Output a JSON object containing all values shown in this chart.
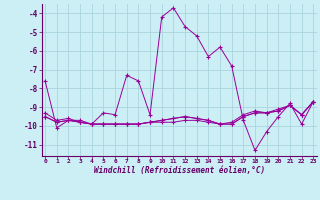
{
  "xlabel": "Windchill (Refroidissement éolien,°C)",
  "background_color": "#cceef5",
  "grid_color": "#aad4dc",
  "line_color": "#990099",
  "axis_color": "#660066",
  "x_ticks": [
    0,
    1,
    2,
    3,
    4,
    5,
    6,
    7,
    8,
    9,
    10,
    11,
    12,
    13,
    14,
    15,
    16,
    17,
    18,
    19,
    20,
    21,
    22,
    23
  ],
  "y_ticks": [
    -4,
    -5,
    -6,
    -7,
    -8,
    -9,
    -10,
    -11
  ],
  "ylim": [
    -11.6,
    -3.5
  ],
  "xlim": [
    -0.3,
    23.3
  ],
  "series": [
    {
      "x": [
        0,
        1,
        2,
        3,
        4,
        5,
        6,
        7,
        8,
        9,
        10,
        11,
        12,
        13,
        14,
        15,
        16,
        17,
        18,
        19,
        20,
        21,
        22,
        23
      ],
      "y": [
        -7.6,
        -10.1,
        -9.7,
        -9.7,
        -9.9,
        -9.3,
        -9.4,
        -7.3,
        -7.6,
        -9.4,
        -4.2,
        -3.7,
        -4.7,
        -5.2,
        -6.3,
        -5.8,
        -6.8,
        -9.7,
        -11.3,
        -10.3,
        -9.5,
        -8.8,
        -9.9,
        -8.7
      ]
    },
    {
      "x": [
        0,
        1,
        2,
        3,
        4,
        5,
        6,
        7,
        8,
        9,
        10,
        11,
        12,
        13,
        14,
        15,
        16,
        17,
        18,
        19,
        20,
        21,
        22,
        23
      ],
      "y": [
        -9.5,
        -9.8,
        -9.7,
        -9.8,
        -9.9,
        -9.9,
        -9.9,
        -9.9,
        -9.9,
        -9.8,
        -9.8,
        -9.8,
        -9.7,
        -9.7,
        -9.8,
        -9.9,
        -9.9,
        -9.5,
        -9.3,
        -9.3,
        -9.2,
        -8.9,
        -9.4,
        -8.7
      ]
    },
    {
      "x": [
        0,
        1,
        2,
        3,
        4,
        5,
        6,
        7,
        8,
        9,
        10,
        11,
        12,
        13,
        14,
        15,
        16,
        17,
        18,
        19,
        20,
        21,
        22,
        23
      ],
      "y": [
        -9.5,
        -9.8,
        -9.7,
        -9.8,
        -9.9,
        -9.9,
        -9.9,
        -9.9,
        -9.9,
        -9.8,
        -9.7,
        -9.6,
        -9.5,
        -9.6,
        -9.7,
        -9.9,
        -9.9,
        -9.5,
        -9.3,
        -9.3,
        -9.2,
        -8.9,
        -9.4,
        -8.7
      ]
    },
    {
      "x": [
        0,
        1,
        2,
        3,
        4,
        5,
        6,
        7,
        8,
        9,
        10,
        11,
        12,
        13,
        14,
        15,
        16,
        17,
        18,
        19,
        20,
        21,
        22,
        23
      ],
      "y": [
        -9.3,
        -9.7,
        -9.6,
        -9.8,
        -9.9,
        -9.9,
        -9.9,
        -9.9,
        -9.9,
        -9.8,
        -9.7,
        -9.6,
        -9.5,
        -9.6,
        -9.7,
        -9.9,
        -9.8,
        -9.4,
        -9.2,
        -9.3,
        -9.1,
        -8.9,
        -9.4,
        -8.7
      ]
    }
  ]
}
